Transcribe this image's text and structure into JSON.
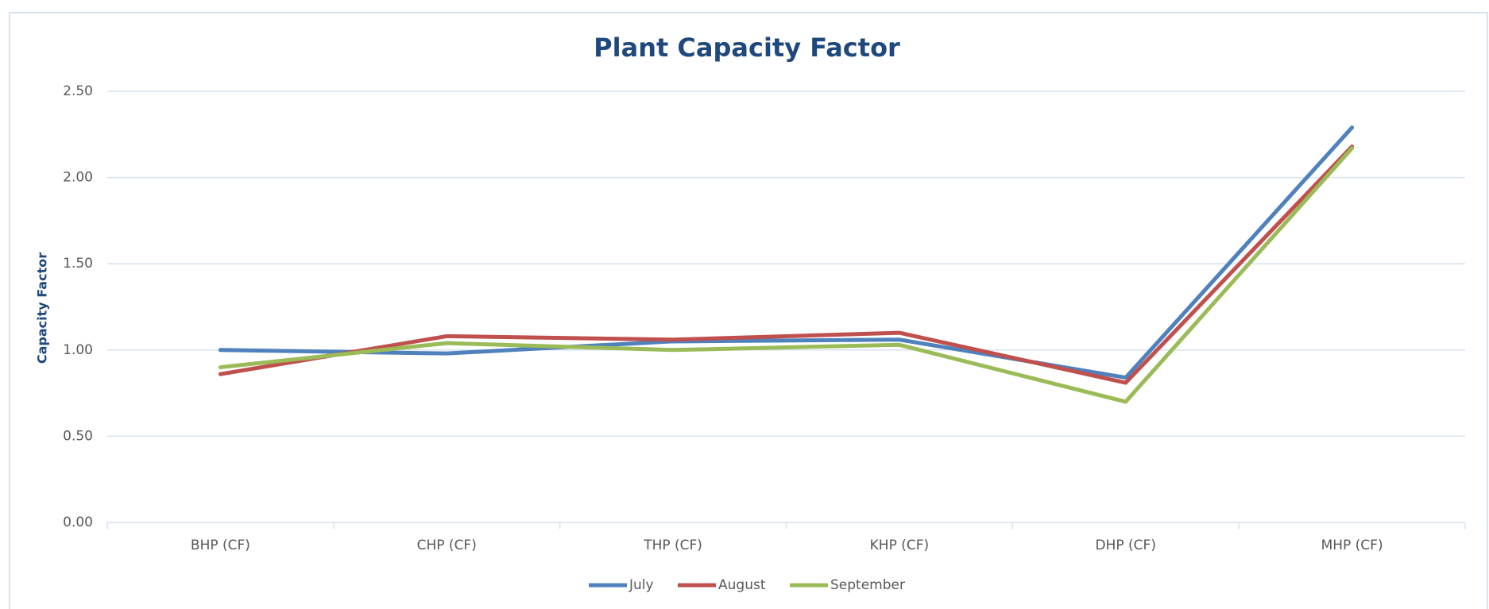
{
  "chart_data": {
    "type": "line",
    "title": "Plant Capacity Factor",
    "y_label": "Capacity Factor",
    "categories": [
      "BHP (CF)",
      "CHP (CF)",
      "THP (CF)",
      "KHP (CF)",
      "DHP (CF)",
      "MHP (CF)"
    ],
    "series": [
      {
        "name": "July",
        "color": "#4f81bd",
        "values": [
          1.0,
          0.98,
          1.05,
          1.06,
          0.84,
          2.29
        ]
      },
      {
        "name": "August",
        "color": "#c0504d",
        "values": [
          0.86,
          1.08,
          1.06,
          1.1,
          0.81,
          2.18
        ]
      },
      {
        "name": "September",
        "color": "#9bbb59",
        "values": [
          0.9,
          1.04,
          1.0,
          1.03,
          0.7,
          2.17
        ]
      }
    ],
    "ylim": [
      0,
      2.5
    ],
    "yticks": [
      {
        "value": 0,
        "label": "0.00"
      },
      {
        "value": 0.5,
        "label": "0.50"
      },
      {
        "value": 1,
        "label": "1.00"
      },
      {
        "value": 1.5,
        "label": "1.50"
      },
      {
        "value": 2,
        "label": "2.00"
      },
      {
        "value": 2.5,
        "label": "2.50"
      }
    ],
    "grid": true,
    "legend": "bottom"
  }
}
